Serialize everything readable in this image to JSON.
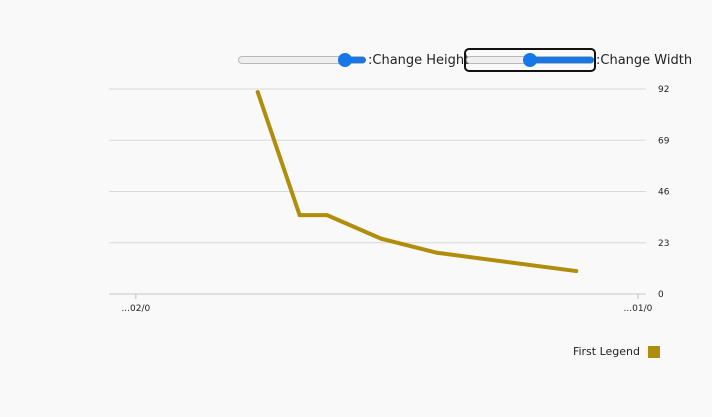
{
  "controls": {
    "height_label": ":Change Height",
    "width_label": ":Change Width",
    "height_value": 0.88,
    "width_value": 0.5
  },
  "legend": {
    "label": "First Legend",
    "color": "#b08d0b"
  },
  "chart_data": {
    "type": "line",
    "title": "",
    "xlabel": "",
    "ylabel": "",
    "x_tick_labels": [
      "...02/0",
      "...01/0"
    ],
    "y_tick_labels": [
      "0",
      "23",
      "46",
      "69",
      "92"
    ],
    "ylim": [
      0,
      92
    ],
    "y_axis_side": "right",
    "grid": true,
    "legend_placement": "bottom-right",
    "x_domain": [
      0,
      100
    ],
    "series": [
      {
        "name": "First Legend",
        "color": "#b08d0b",
        "x": [
          27.7,
          35.5,
          40.6,
          50.7,
          61.1,
          87.0
        ],
        "y": [
          90.6,
          35.4,
          35.4,
          24.8,
          18.5,
          10.3
        ]
      }
    ]
  }
}
